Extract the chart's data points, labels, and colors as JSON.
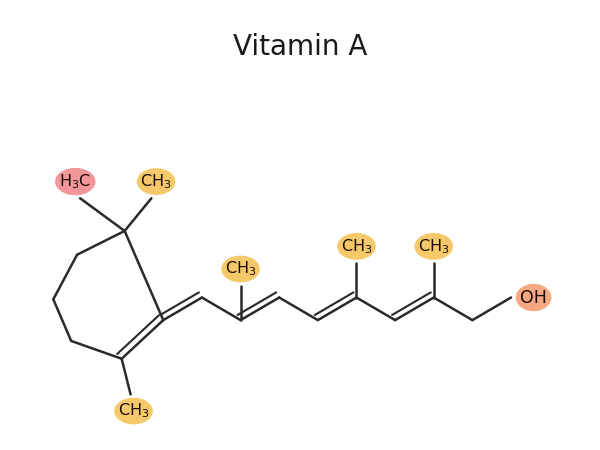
{
  "title": "Vitamin A",
  "title_fontsize": 20,
  "bg_color": "#ffffff",
  "line_color": "#2a2a2a",
  "line_width": 1.8,
  "colors": {
    "pink": "#f2969a",
    "yellow": "#f5c96a",
    "salmon": "#f5a882"
  }
}
